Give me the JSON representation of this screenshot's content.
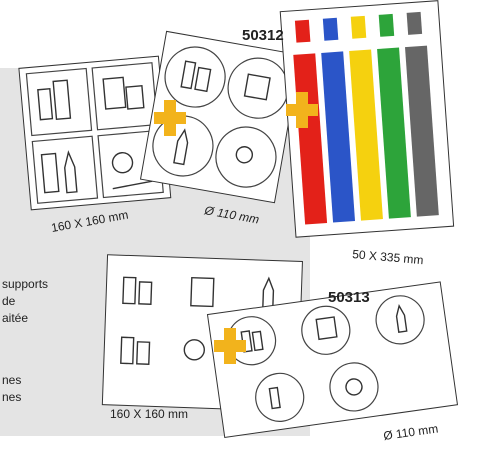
{
  "products": [
    {
      "code": "50312",
      "items": [
        {
          "size": "160 X 160 mm"
        },
        {
          "size": "Ø 110 mm"
        },
        {
          "size": "50 X 335 mm"
        }
      ]
    },
    {
      "code": "50313",
      "items": [
        {
          "size": "160 X 160 mm"
        },
        {
          "size": "Ø 110 mm"
        }
      ]
    }
  ],
  "side_text": [
    "supports",
    "de",
    "aitée",
    "nes",
    "nes"
  ]
}
